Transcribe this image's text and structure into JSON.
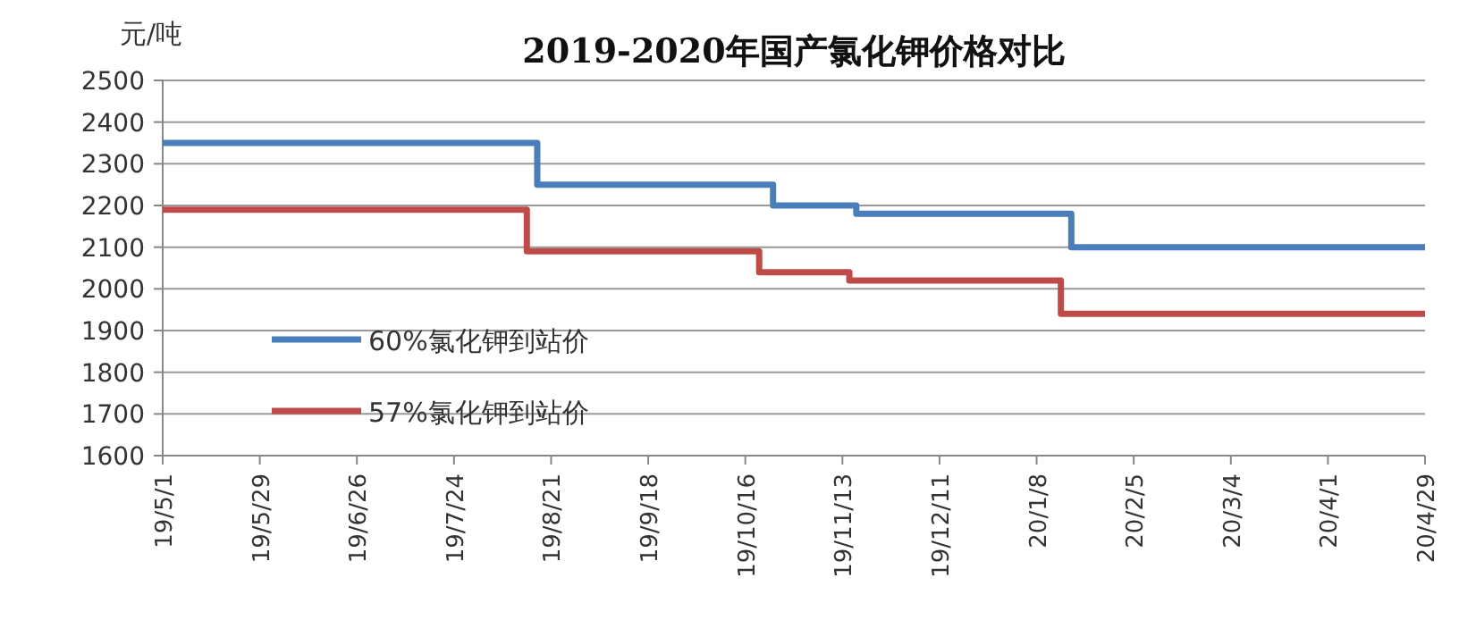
{
  "chart_data": {
    "type": "step",
    "title": "2019-2020年国产氯化钾价格对比",
    "ylabel": "元/吨",
    "xlim": [
      "2019-05-01",
      "2020-04-29"
    ],
    "xticks": [
      {
        "value": "2019-05-01",
        "label": "19/5/1"
      },
      {
        "value": "2019-05-29",
        "label": "19/5/29"
      },
      {
        "value": "2019-06-26",
        "label": "19/6/26"
      },
      {
        "value": "2019-07-24",
        "label": "19/7/24"
      },
      {
        "value": "2019-08-21",
        "label": "19/8/21"
      },
      {
        "value": "2019-09-18",
        "label": "19/9/18"
      },
      {
        "value": "2019-10-16",
        "label": "19/10/16"
      },
      {
        "value": "2019-11-13",
        "label": "19/11/13"
      },
      {
        "value": "2019-12-11",
        "label": "19/12/11"
      },
      {
        "value": "2020-01-08",
        "label": "20/1/8"
      },
      {
        "value": "2020-02-05",
        "label": "20/2/5"
      },
      {
        "value": "2020-03-04",
        "label": "20/3/4"
      },
      {
        "value": "2020-04-01",
        "label": "20/4/1"
      },
      {
        "value": "2020-04-29",
        "label": "20/4/29"
      }
    ],
    "ylim": [
      1600,
      2500
    ],
    "yticks": [
      1600,
      1700,
      1800,
      1900,
      2000,
      2100,
      2200,
      2300,
      2400,
      2500
    ],
    "grid": "y",
    "legend": "left",
    "series": [
      {
        "name": "60%氯化钾到站价",
        "color": "#4a7ebb",
        "x": [
          "2019-05-01",
          "2019-08-17",
          "2019-10-24",
          "2019-11-17",
          "2020-01-18",
          "2020-04-29"
        ],
        "values": [
          2350,
          2250,
          2200,
          2180,
          2100,
          2100
        ]
      },
      {
        "name": "57%氯化钾到站价",
        "color": "#be4b48",
        "x": [
          "2019-05-01",
          "2019-08-14",
          "2019-10-20",
          "2019-11-15",
          "2020-01-15",
          "2020-04-29"
        ],
        "values": [
          2190,
          2090,
          2040,
          2020,
          1940,
          1940
        ]
      }
    ]
  }
}
